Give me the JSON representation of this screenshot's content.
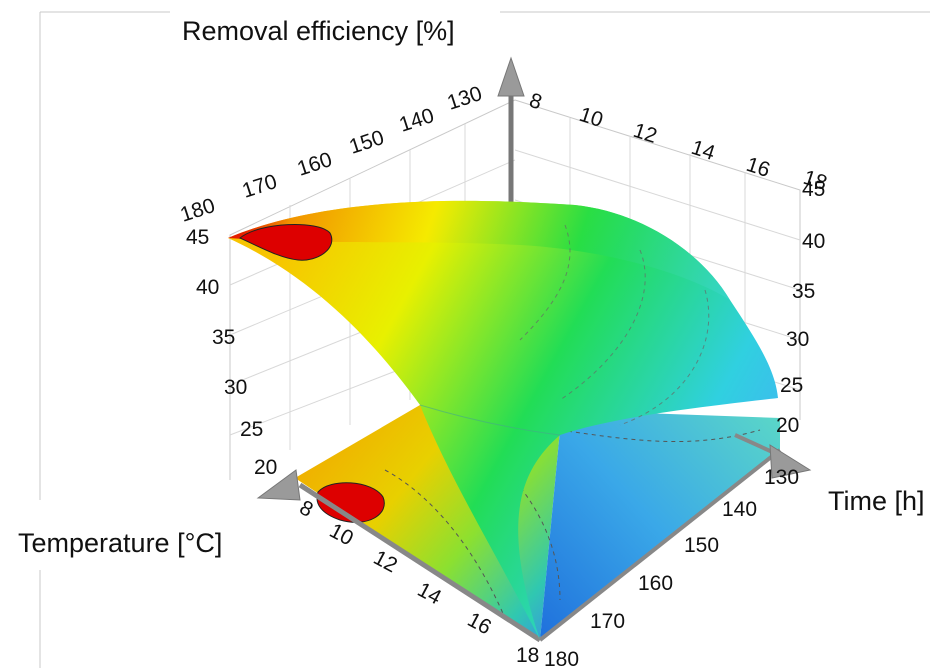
{
  "chart_data": {
    "type": "surface",
    "title": "",
    "zlabel": "Removal efficiency  [%]",
    "xlabel": "Temperature [°C]",
    "ylabel": "Time [h]",
    "temperature_ticks": [
      130,
      140,
      150,
      160,
      170,
      180
    ],
    "time_ticks": [
      8,
      10,
      12,
      14,
      16,
      18
    ],
    "efficiency_ticks": [
      20,
      25,
      30,
      35,
      40,
      45
    ],
    "zlim": [
      20,
      45
    ],
    "surface_samples": [
      {
        "temperature": 180,
        "time": 8,
        "efficiency": 45
      },
      {
        "temperature": 130,
        "time": 8,
        "efficiency": 41
      },
      {
        "temperature": 180,
        "time": 18,
        "efficiency": 22
      },
      {
        "temperature": 130,
        "time": 18,
        "efficiency": 24
      }
    ],
    "colormap": [
      "#1e78e0",
      "#39c9ff",
      "#22dd55",
      "#ffff00",
      "#ffa000",
      "#e00000"
    ],
    "grid": true
  }
}
